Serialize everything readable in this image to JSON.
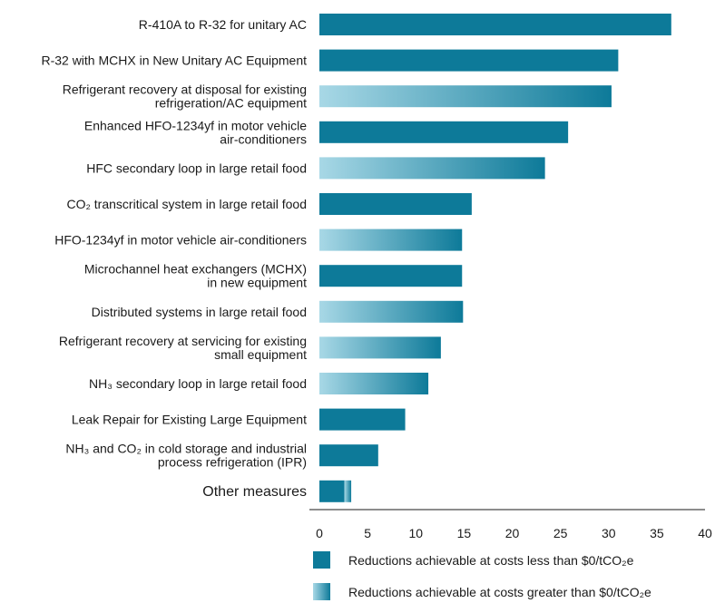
{
  "chart_data": {
    "type": "bar",
    "orientation": "horizontal",
    "stacked": true,
    "categories": [
      "R-410A to R-32 for unitary AC",
      "R-32 with MCHX in New Unitary AC Equipment",
      "Refrigerant recovery at disposal for existing refrigeration/AC equipment",
      "Enhanced HFO-1234yf in motor vehicle air-conditioners",
      "HFC secondary loop in large retail food",
      "CO₂ transcritical system in large retail food",
      "HFO-1234yf in motor vehicle air-conditioners",
      "Microchannel heat exchangers (MCHX) in new equipment",
      "Distributed systems in large retail food",
      "Refrigerant recovery at servicing for existing small equipment",
      "NH₃ secondary loop in large retail food",
      "Leak Repair for Existing Large Equipment",
      "NH₃ and CO₂ in cold storage and industrial process refrigeration (IPR)",
      "Other measures"
    ],
    "category_lines": [
      [
        "R-410A to R-32 for unitary AC"
      ],
      [
        "R-32 with MCHX in New Unitary AC Equipment"
      ],
      [
        "Refrigerant recovery at disposal for existing",
        "refrigeration/AC equipment"
      ],
      [
        "Enhanced HFO-1234yf in motor vehicle",
        "air-conditioners"
      ],
      [
        "HFC secondary loop in large retail food"
      ],
      [
        "CO₂ transcritical system in large retail food"
      ],
      [
        "HFO-1234yf in motor vehicle air-conditioners"
      ],
      [
        "Microchannel heat exchangers (MCHX)",
        "in new equipment"
      ],
      [
        "Distributed systems in large retail food"
      ],
      [
        "Refrigerant recovery at servicing for existing",
        "small equipment"
      ],
      [
        "NH₃ secondary loop in large retail food"
      ],
      [
        "Leak Repair for Existing Large Equipment"
      ],
      [
        "NH₃ and CO₂ in cold storage and industrial",
        "process refrigeration (IPR)"
      ],
      [
        "Other measures"
      ]
    ],
    "series": [
      {
        "name": "Reductions achievable at costs less than $0/tCO₂e",
        "color": "#0d7a99",
        "values": [
          36.5,
          31.0,
          0,
          25.8,
          0,
          15.8,
          0,
          14.8,
          0,
          0,
          0,
          8.9,
          6.1,
          2.6
        ]
      },
      {
        "name": "Reductions achievable at costs greater than $0/tCO₂e",
        "color_start": "#a8d8e6",
        "color_end": "#0d7a99",
        "values": [
          0,
          0,
          30.3,
          0,
          23.4,
          0,
          14.8,
          0,
          14.9,
          12.6,
          11.3,
          0,
          0,
          0.7
        ]
      }
    ],
    "x_ticks": [
      0,
      5,
      10,
      15,
      20,
      25,
      30,
      35,
      40
    ],
    "xlim": [
      0,
      40
    ],
    "xlabel": "",
    "ylabel": "",
    "title": "",
    "grid": false,
    "legend_position": "bottom"
  }
}
